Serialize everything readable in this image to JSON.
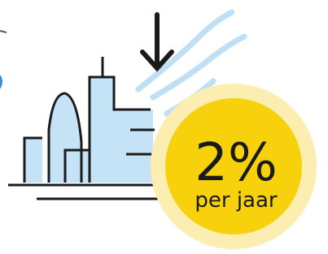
{
  "badge": {
    "value": "2%",
    "label": "per jaar"
  }
}
